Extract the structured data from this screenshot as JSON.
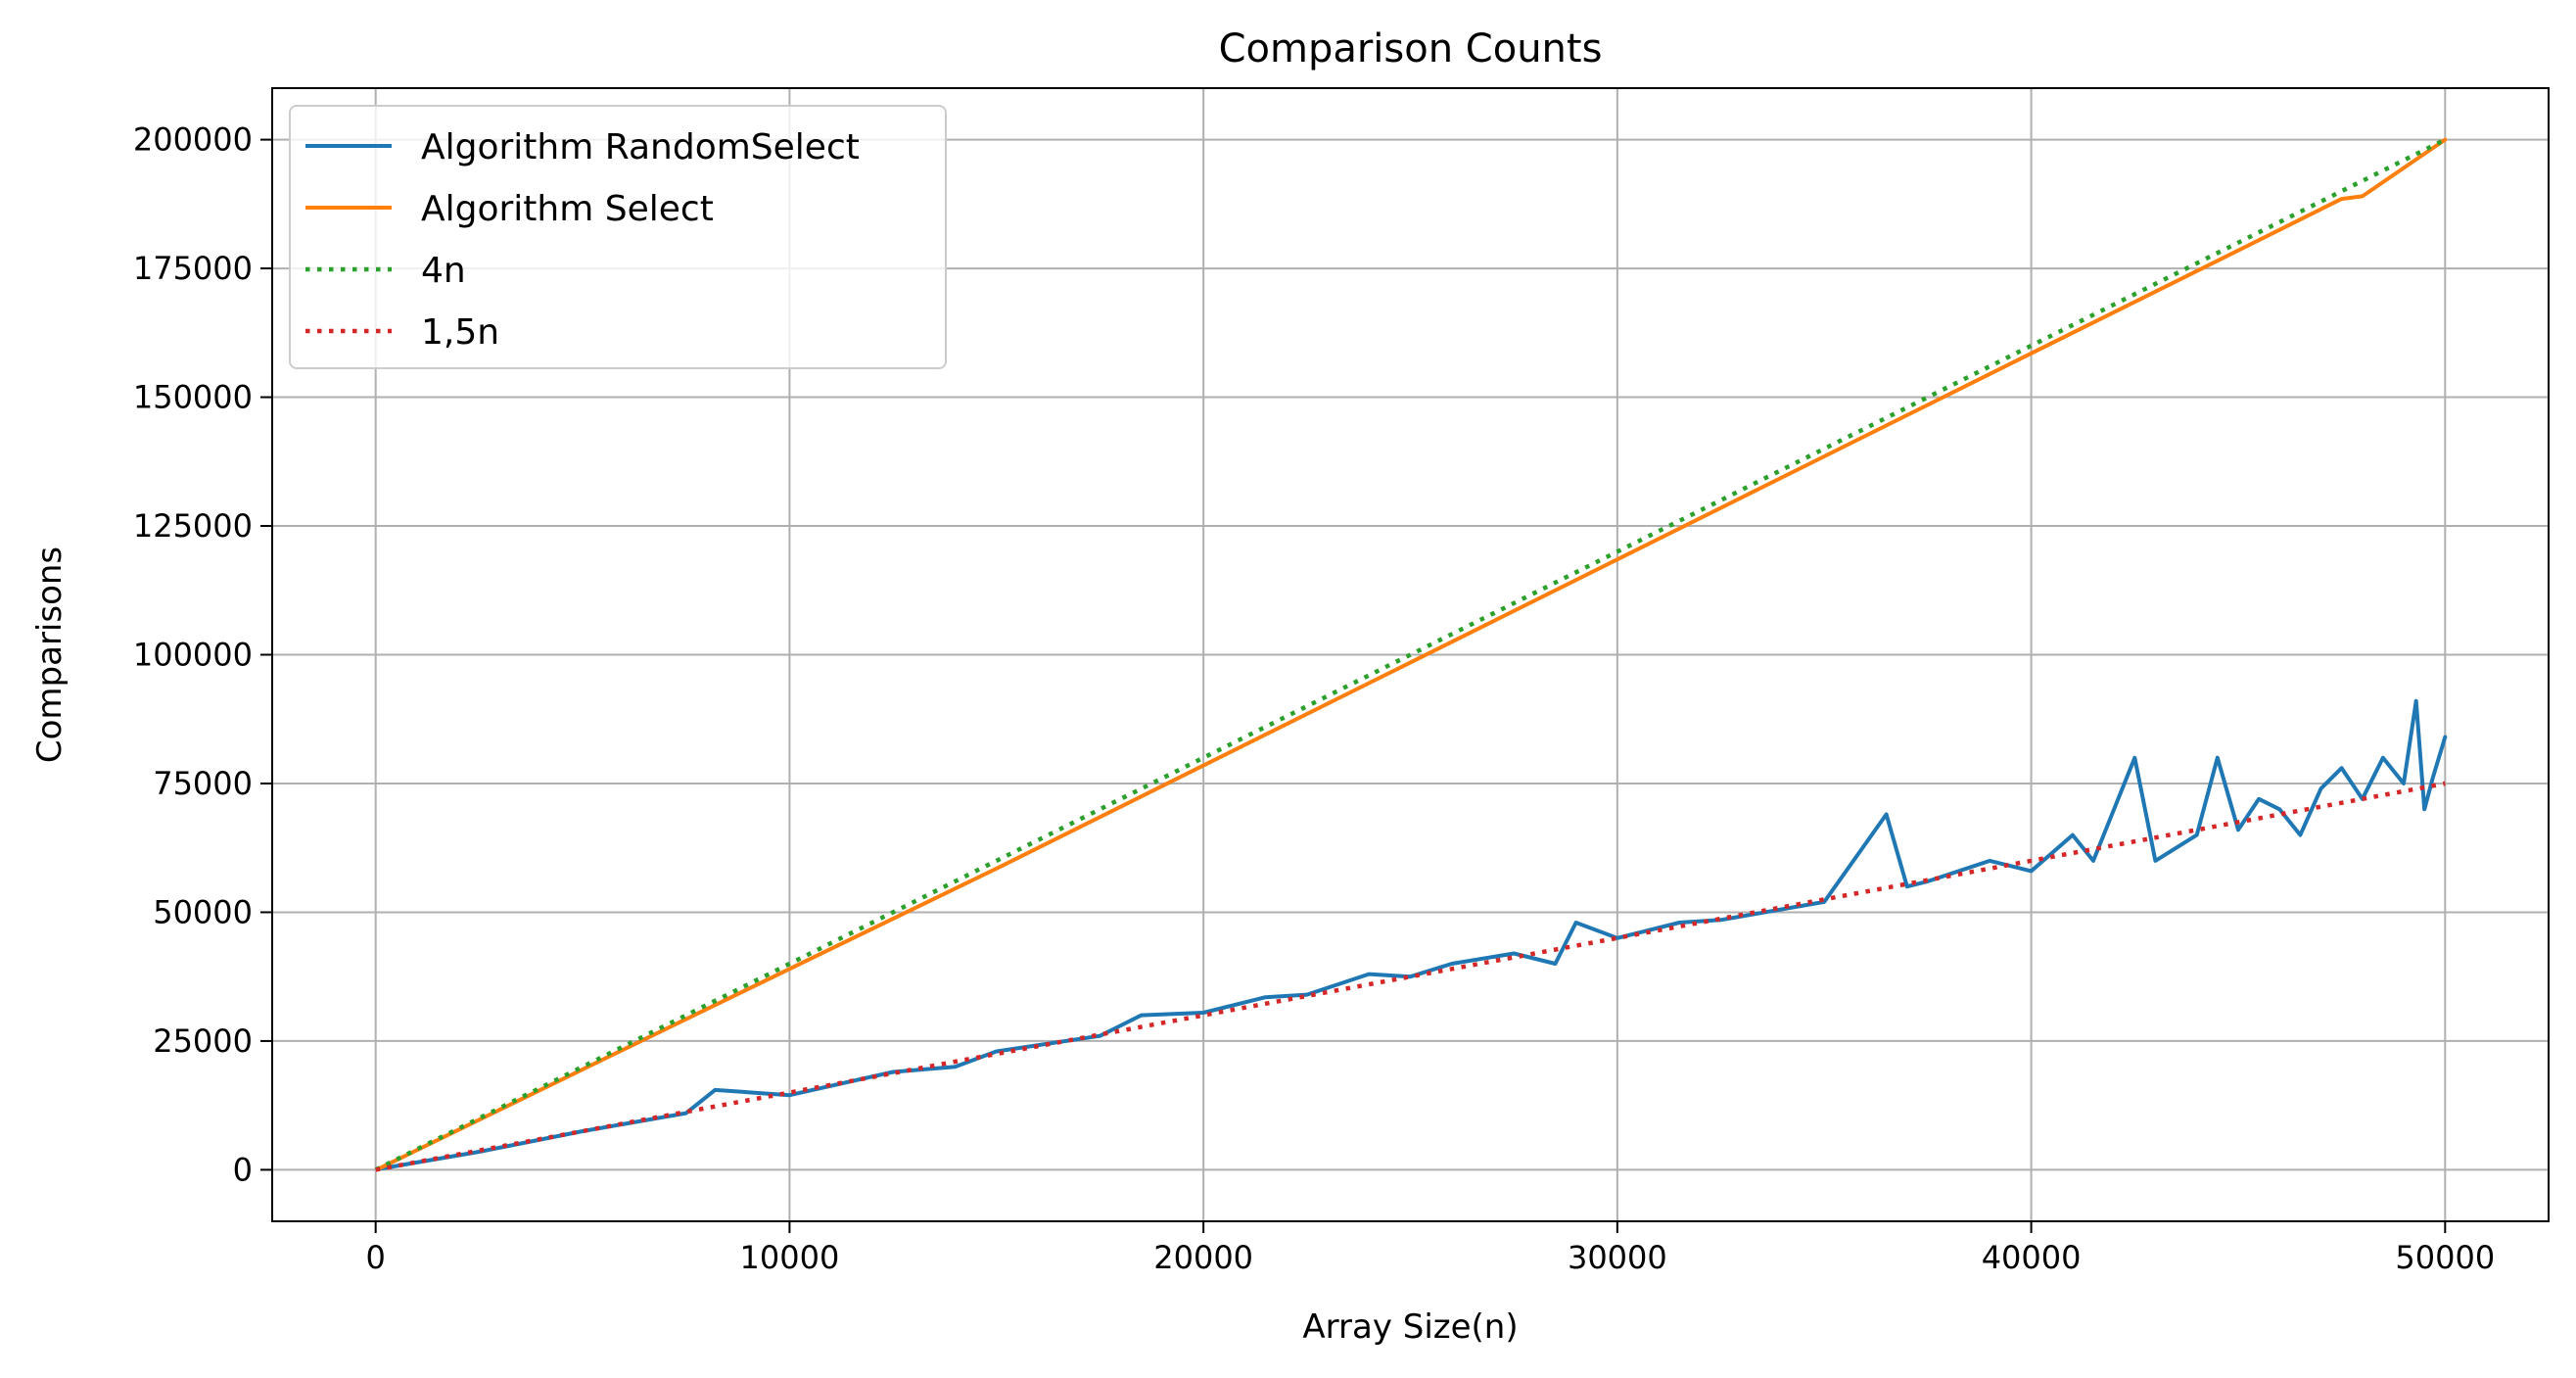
{
  "chart_data": {
    "type": "line",
    "title": "Comparison Counts",
    "xlabel": "Array Size(n)",
    "ylabel": "Comparisons",
    "xlim": [
      -2500,
      52500
    ],
    "ylim": [
      -10000,
      210000
    ],
    "xticks": [
      0,
      10000,
      20000,
      30000,
      40000,
      50000
    ],
    "xtick_labels": [
      "0",
      "10000",
      "20000",
      "30000",
      "40000",
      "50000"
    ],
    "yticks": [
      0,
      25000,
      50000,
      75000,
      100000,
      125000,
      150000,
      175000,
      200000
    ],
    "ytick_labels": [
      "0",
      "25000",
      "50000",
      "75000",
      "100000",
      "125000",
      "150000",
      "175000",
      "200000"
    ],
    "grid": true,
    "legend_position": "top-left",
    "series": [
      {
        "name": "Algorithm RandomSelect",
        "color": "#1f77b4",
        "style": "solid",
        "x": [
          100,
          2500,
          5000,
          7500,
          8200,
          10000,
          12500,
          14000,
          15000,
          17500,
          18500,
          20000,
          21500,
          22500,
          24000,
          25000,
          26000,
          27500,
          28500,
          29000,
          30000,
          31500,
          32500,
          35000,
          36500,
          37000,
          37500,
          39000,
          40000,
          41000,
          41500,
          42500,
          43000,
          44000,
          44500,
          45000,
          45500,
          46000,
          46500,
          47000,
          47500,
          48000,
          48500,
          49000,
          49300,
          49500,
          49700,
          50000
        ],
        "y": [
          200,
          3500,
          7500,
          11000,
          15500,
          14500,
          19000,
          20000,
          23000,
          26000,
          30000,
          30500,
          33500,
          34000,
          38000,
          37500,
          40000,
          42000,
          40000,
          48000,
          45000,
          48000,
          48500,
          52000,
          69000,
          55000,
          56000,
          60000,
          58000,
          65000,
          60000,
          80000,
          60000,
          65000,
          80000,
          66000,
          72000,
          70000,
          65000,
          74000,
          78000,
          72000,
          80000,
          75000,
          91000,
          70000,
          76000,
          84000
        ]
      },
      {
        "name": "Algorithm Select",
        "color": "#ff7f0e",
        "style": "solid",
        "x": [
          100,
          5000,
          10000,
          15000,
          20000,
          25000,
          30000,
          35000,
          40000,
          45000,
          47500,
          48000,
          49000,
          50000
        ],
        "y": [
          300,
          19500,
          39000,
          58500,
          78500,
          98500,
          118500,
          138500,
          158500,
          178500,
          188500,
          189000,
          194500,
          200000
        ]
      },
      {
        "name": "4n",
        "color": "#2ca02c",
        "style": "dotted",
        "x": [
          0,
          50000
        ],
        "y": [
          0,
          200000
        ]
      },
      {
        "name": "1,5n",
        "color": "#d62728",
        "style": "dotted",
        "x": [
          0,
          50000
        ],
        "y": [
          0,
          75000
        ]
      }
    ]
  }
}
